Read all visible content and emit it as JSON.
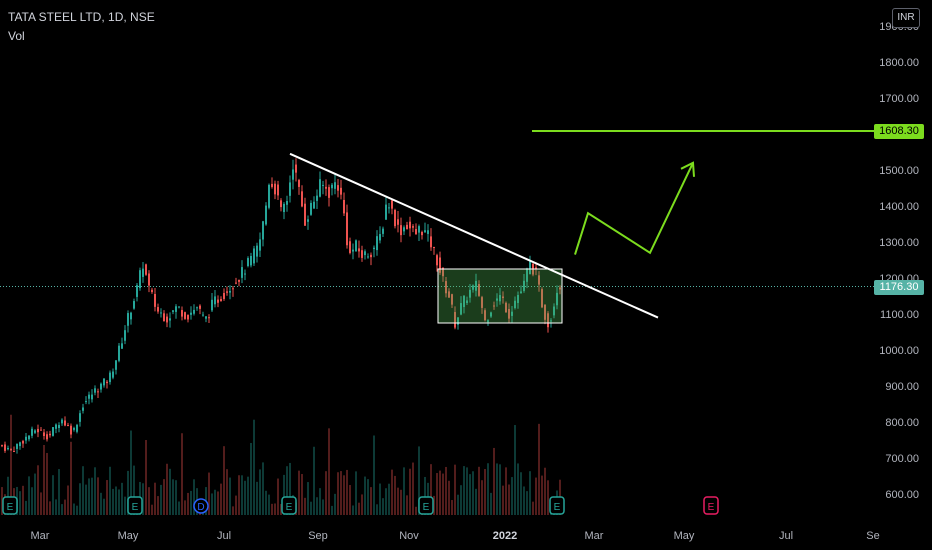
{
  "header": {
    "title": "TATA STEEL LTD, 1D, NSE",
    "indicator": "Vol",
    "currency": "INR"
  },
  "price_tags": {
    "target": "1608.30",
    "last": "1176.30"
  },
  "colors": {
    "up": "#26a69a",
    "down": "#ef5350",
    "target_line": "#7cdc1e",
    "trendline": "#ffffff",
    "range_box": "#4caf50"
  },
  "chart_data": {
    "type": "candlestick",
    "y_ticks": [
      "1900.00",
      "1800.00",
      "1700.00",
      "1600.00",
      "1500.00",
      "1400.00",
      "1300.00",
      "1200.00",
      "1100.00",
      "1000.00",
      "900.00",
      "800.00",
      "700.00",
      "600.00"
    ],
    "ylim": [
      560,
      1940
    ],
    "x_ticks": [
      "Mar",
      "May",
      "Jul",
      "Sep",
      "Nov",
      "2022",
      "Mar",
      "May",
      "Jul",
      "Se"
    ],
    "last_price": 1176.3,
    "target_price": 1608.3,
    "event_markers": [
      "E",
      "E",
      "D",
      "E",
      "E",
      "E",
      "E",
      "E"
    ],
    "price_path": [
      [
        0,
        735
      ],
      [
        10,
        720
      ],
      [
        20,
        745
      ],
      [
        35,
        780
      ],
      [
        48,
        760
      ],
      [
        60,
        810
      ],
      [
        72,
        770
      ],
      [
        82,
        850
      ],
      [
        95,
        890
      ],
      [
        108,
        920
      ],
      [
        118,
        1000
      ],
      [
        128,
        1100
      ],
      [
        136,
        1170
      ],
      [
        142,
        1240
      ],
      [
        148,
        1170
      ],
      [
        156,
        1110
      ],
      [
        166,
        1090
      ],
      [
        176,
        1120
      ],
      [
        186,
        1095
      ],
      [
        196,
        1120
      ],
      [
        204,
        1080
      ],
      [
        212,
        1130
      ],
      [
        220,
        1150
      ],
      [
        230,
        1180
      ],
      [
        240,
        1210
      ],
      [
        250,
        1250
      ],
      [
        258,
        1290
      ],
      [
        264,
        1380
      ],
      [
        268,
        1470
      ],
      [
        274,
        1450
      ],
      [
        280,
        1380
      ],
      [
        286,
        1420
      ],
      [
        292,
        1520
      ],
      [
        298,
        1440
      ],
      [
        304,
        1360
      ],
      [
        312,
        1410
      ],
      [
        320,
        1460
      ],
      [
        328,
        1440
      ],
      [
        336,
        1470
      ],
      [
        342,
        1400
      ],
      [
        348,
        1260
      ],
      [
        354,
        1290
      ],
      [
        362,
        1260
      ],
      [
        372,
        1280
      ],
      [
        380,
        1320
      ],
      [
        386,
        1420
      ],
      [
        392,
        1380
      ],
      [
        398,
        1330
      ],
      [
        406,
        1350
      ],
      [
        414,
        1320
      ],
      [
        420,
        1340
      ],
      [
        428,
        1310
      ],
      [
        436,
        1250
      ],
      [
        442,
        1190
      ],
      [
        448,
        1150
      ],
      [
        454,
        1075
      ],
      [
        460,
        1120
      ],
      [
        468,
        1160
      ],
      [
        476,
        1180
      ],
      [
        484,
        1080
      ],
      [
        492,
        1130
      ],
      [
        500,
        1150
      ],
      [
        508,
        1100
      ],
      [
        516,
        1150
      ],
      [
        522,
        1170
      ],
      [
        528,
        1240
      ],
      [
        534,
        1220
      ],
      [
        540,
        1140
      ],
      [
        546,
        1075
      ],
      [
        550,
        1090
      ],
      [
        556,
        1175
      ],
      [
        560,
        1178
      ]
    ],
    "annotations": {
      "trendline": [
        [
          290,
          1545
        ],
        [
          658,
          1090
        ]
      ],
      "range_box": {
        "x": [
          438,
          562
        ],
        "y": [
          1075,
          1225
        ]
      },
      "target_level": {
        "from_x": 532,
        "price": 1608.3
      },
      "projection_path": [
        [
          575,
          1265
        ],
        [
          588,
          1380
        ],
        [
          650,
          1270
        ],
        [
          693,
          1520
        ]
      ]
    }
  }
}
